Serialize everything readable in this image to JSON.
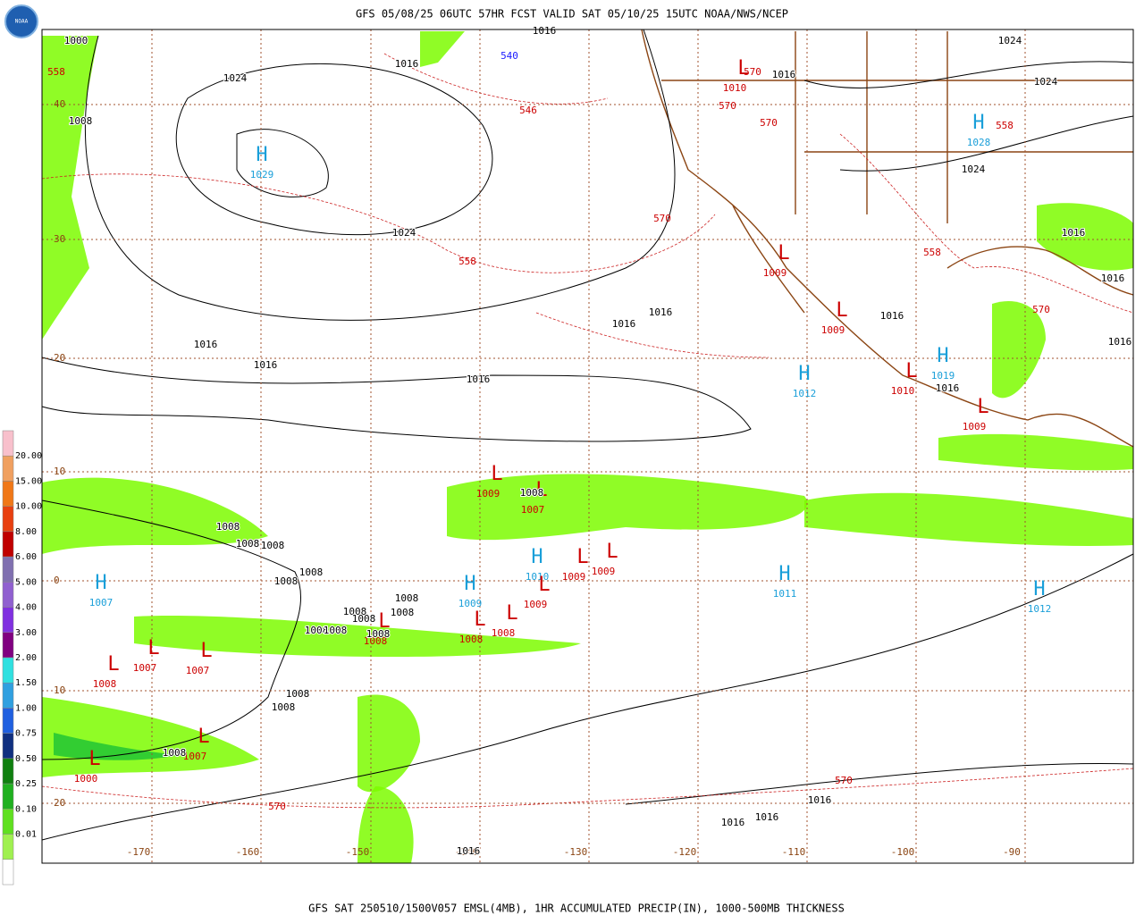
{
  "header": {
    "title": "GFS 05/08/25 06UTC 57HR FCST VALID SAT 05/10/25 15UTC NOAA/NWS/NCEP",
    "logo": "NOAA"
  },
  "footer": {
    "caption": "GFS SAT 250510/1500V057 EMSL(4MB), 1HR ACCUMULATED PRECIP(IN), 1000-500MB THICKNESS"
  },
  "legend": {
    "labels": [
      "20.00",
      "15.00",
      "10.00",
      "8.00",
      "6.00",
      "5.00",
      "4.00",
      "3.00",
      "2.00",
      "1.50",
      "1.00",
      "0.75",
      "0.50",
      "0.25",
      "0.10",
      "0.01"
    ],
    "colors": [
      "#f8c0cc",
      "#f0a060",
      "#f07818",
      "#e84010",
      "#c00000",
      "#8070b0",
      "#9060d0",
      "#8030e0",
      "#800080",
      "#30e0e0",
      "#30a0e0",
      "#2060e0",
      "#103080",
      "#108010",
      "#20b020",
      "#60e020",
      "#a0f050",
      "#ffffff"
    ]
  },
  "lat_labels": [
    "40",
    "30",
    "20",
    "10",
    "0",
    "10",
    "20"
  ],
  "lon_labels": [
    "-170",
    "-160",
    "-150",
    "-140",
    "-130",
    "-120",
    "-110",
    "-100",
    "-90"
  ],
  "highs": [
    {
      "symbol": "H",
      "value": "1029"
    },
    {
      "symbol": "H",
      "value": "1028"
    },
    {
      "symbol": "H",
      "value": "1012"
    },
    {
      "symbol": "H",
      "value": "1019"
    },
    {
      "symbol": "H",
      "value": "1010"
    },
    {
      "symbol": "H",
      "value": "1009"
    },
    {
      "symbol": "H",
      "value": "1011"
    },
    {
      "symbol": "H",
      "value": "1007"
    },
    {
      "symbol": "H",
      "value": "1012"
    }
  ],
  "lows": [
    {
      "symbol": "L",
      "value": "1009"
    },
    {
      "symbol": "L",
      "value": "1009"
    },
    {
      "symbol": "L",
      "value": "1010"
    },
    {
      "symbol": "L",
      "value": "1009"
    },
    {
      "symbol": "L",
      "value": "1009"
    },
    {
      "symbol": "L",
      "value": "1007"
    },
    {
      "symbol": "L",
      "value": "1009"
    },
    {
      "symbol": "L",
      "value": "1009"
    },
    {
      "symbol": "L",
      "value": "1009"
    },
    {
      "symbol": "L",
      "value": "1008"
    },
    {
      "symbol": "L",
      "value": "1008"
    },
    {
      "symbol": "L",
      "value": "1008"
    },
    {
      "symbol": "L",
      "value": "1007"
    },
    {
      "symbol": "L",
      "value": "1007"
    },
    {
      "symbol": "L",
      "value": "1008"
    },
    {
      "symbol": "L",
      "value": "1007"
    },
    {
      "symbol": "L",
      "value": "1000"
    },
    {
      "symbol": "L",
      "value": "1010"
    }
  ],
  "isobar_labels": [
    "1000",
    "1016",
    "1024",
    "1008",
    "1016",
    "1024",
    "1016",
    "1024",
    "1024",
    "1024",
    "1016",
    "1016",
    "1016",
    "1016",
    "1016",
    "1016",
    "1016",
    "1016",
    "1016",
    "1016",
    "1008",
    "1008",
    "1008",
    "1008",
    "1008",
    "1008",
    "1008",
    "1008",
    "1008",
    "1008",
    "1008",
    "1008",
    "1008",
    "1008",
    "1008",
    "1008",
    "1016",
    "1016",
    "1016",
    "1016"
  ],
  "thickness_labels": [
    {
      "text": "558",
      "color": "#cc0000"
    },
    {
      "text": "546",
      "color": "#cc0000"
    },
    {
      "text": "540",
      "color": "#1a1aff"
    },
    {
      "text": "570",
      "color": "#cc0000"
    },
    {
      "text": "570",
      "color": "#cc0000"
    },
    {
      "text": "570",
      "color": "#cc0000"
    },
    {
      "text": "570",
      "color": "#cc0000"
    },
    {
      "text": "558",
      "color": "#cc0000"
    },
    {
      "text": "558",
      "color": "#cc0000"
    },
    {
      "text": "558",
      "color": "#cc0000"
    },
    {
      "text": "570",
      "color": "#cc0000"
    },
    {
      "text": "570",
      "color": "#cc0000"
    },
    {
      "text": "570",
      "color": "#cc0000"
    }
  ]
}
